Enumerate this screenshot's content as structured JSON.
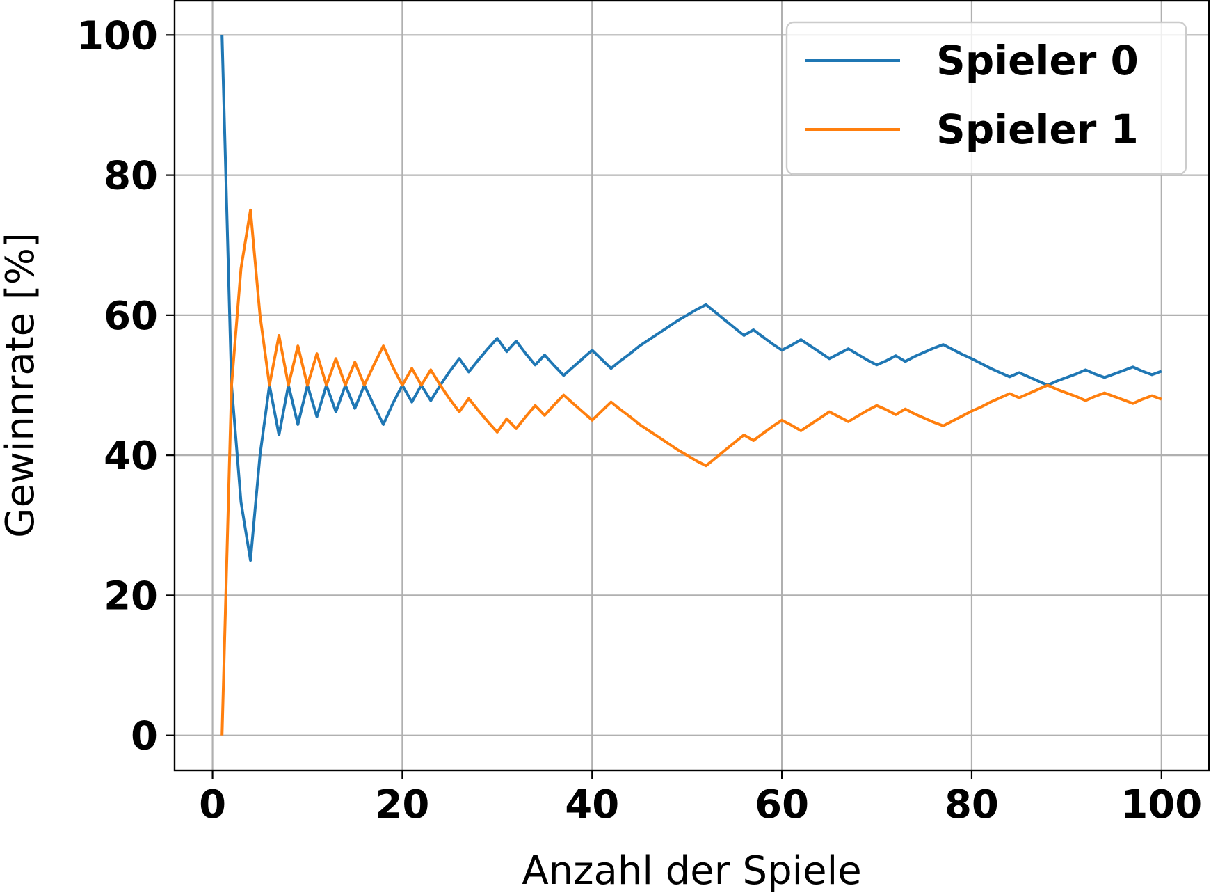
{
  "chart_data": {
    "type": "line",
    "title": "",
    "xlabel": "Anzahl der Spiele",
    "ylabel": "Gewinnrate [%]",
    "xlim": [
      -4,
      105
    ],
    "ylim": [
      -5,
      105
    ],
    "xticks": [
      "0",
      "20",
      "40",
      "60",
      "80",
      "100"
    ],
    "yticks": [
      "0",
      "20",
      "40",
      "60",
      "80",
      "100"
    ],
    "grid": true,
    "legend_position": "top-right",
    "series": [
      {
        "name": "Spieler 0",
        "color": "#1f77b4",
        "x": [
          1,
          2,
          3,
          4,
          5,
          6,
          7,
          8,
          9,
          10,
          11,
          12,
          13,
          14,
          15,
          16,
          17,
          18,
          19,
          20,
          21,
          22,
          23,
          24,
          25,
          26,
          27,
          28,
          29,
          30,
          31,
          32,
          33,
          34,
          35,
          36,
          37,
          38,
          39,
          40,
          41,
          42,
          43,
          44,
          45,
          46,
          47,
          48,
          49,
          50,
          51,
          52,
          53,
          54,
          55,
          56,
          57,
          58,
          59,
          60,
          61,
          62,
          63,
          64,
          65,
          66,
          67,
          68,
          69,
          70,
          71,
          72,
          73,
          74,
          75,
          76,
          77,
          78,
          79,
          80,
          81,
          82,
          83,
          84,
          85,
          86,
          87,
          88,
          89,
          90,
          91,
          92,
          93,
          94,
          95,
          96,
          97,
          98,
          99,
          100
        ],
        "values": [
          100,
          50,
          33.3,
          25,
          40,
          50,
          42.9,
          50,
          44.4,
          50,
          45.5,
          50,
          46.2,
          50,
          46.7,
          50,
          47.1,
          44.4,
          47.4,
          50,
          47.6,
          50,
          47.8,
          50,
          52,
          53.8,
          51.9,
          53.6,
          55.2,
          56.7,
          54.8,
          56.3,
          54.5,
          52.9,
          54.3,
          52.8,
          51.4,
          52.6,
          53.8,
          55,
          53.7,
          52.4,
          53.5,
          54.5,
          55.6,
          56.5,
          57.4,
          58.3,
          59.2,
          60,
          60.8,
          61.5,
          60.4,
          59.3,
          58.2,
          57.1,
          57.9,
          56.9,
          55.9,
          55,
          55.7,
          56.5,
          55.6,
          54.7,
          53.8,
          54.5,
          55.2,
          54.4,
          53.6,
          52.9,
          53.5,
          54.2,
          53.4,
          54.1,
          54.7,
          55.3,
          55.8,
          55.1,
          54.4,
          53.8,
          53.1,
          52.4,
          51.8,
          51.2,
          51.8,
          51.2,
          50.6,
          50,
          50.6,
          51.1,
          51.6,
          52.2,
          51.6,
          51.1,
          51.6,
          52.1,
          52.6,
          52,
          51.5,
          52
        ]
      },
      {
        "name": "Spieler 1",
        "color": "#ff7f0e",
        "x": [
          1,
          2,
          3,
          4,
          5,
          6,
          7,
          8,
          9,
          10,
          11,
          12,
          13,
          14,
          15,
          16,
          17,
          18,
          19,
          20,
          21,
          22,
          23,
          24,
          25,
          26,
          27,
          28,
          29,
          30,
          31,
          32,
          33,
          34,
          35,
          36,
          37,
          38,
          39,
          40,
          41,
          42,
          43,
          44,
          45,
          46,
          47,
          48,
          49,
          50,
          51,
          52,
          53,
          54,
          55,
          56,
          57,
          58,
          59,
          60,
          61,
          62,
          63,
          64,
          65,
          66,
          67,
          68,
          69,
          70,
          71,
          72,
          73,
          74,
          75,
          76,
          77,
          78,
          79,
          80,
          81,
          82,
          83,
          84,
          85,
          86,
          87,
          88,
          89,
          90,
          91,
          92,
          93,
          94,
          95,
          96,
          97,
          98,
          99,
          100
        ],
        "values": [
          0,
          50,
          66.7,
          75,
          60,
          50,
          57.1,
          50,
          55.6,
          50,
          54.5,
          50,
          53.8,
          50,
          53.3,
          50,
          52.9,
          55.6,
          52.6,
          50,
          52.4,
          50,
          52.2,
          50,
          48,
          46.2,
          48.1,
          46.4,
          44.8,
          43.3,
          45.2,
          43.8,
          45.5,
          47.1,
          45.7,
          47.2,
          48.6,
          47.4,
          46.2,
          45,
          46.3,
          47.6,
          46.5,
          45.5,
          44.4,
          43.5,
          42.6,
          41.7,
          40.8,
          40,
          39.2,
          38.5,
          39.6,
          40.7,
          41.8,
          42.9,
          42.1,
          43.1,
          44.1,
          45,
          44.3,
          43.5,
          44.4,
          45.3,
          46.2,
          45.5,
          44.8,
          45.6,
          46.4,
          47.1,
          46.5,
          45.8,
          46.6,
          45.9,
          45.3,
          44.7,
          44.2,
          44.9,
          45.6,
          46.3,
          46.9,
          47.6,
          48.2,
          48.8,
          48.2,
          48.8,
          49.4,
          50,
          49.4,
          48.9,
          48.4,
          47.8,
          48.4,
          48.9,
          48.4,
          47.9,
          47.4,
          48,
          48.5,
          48
        ]
      }
    ]
  }
}
